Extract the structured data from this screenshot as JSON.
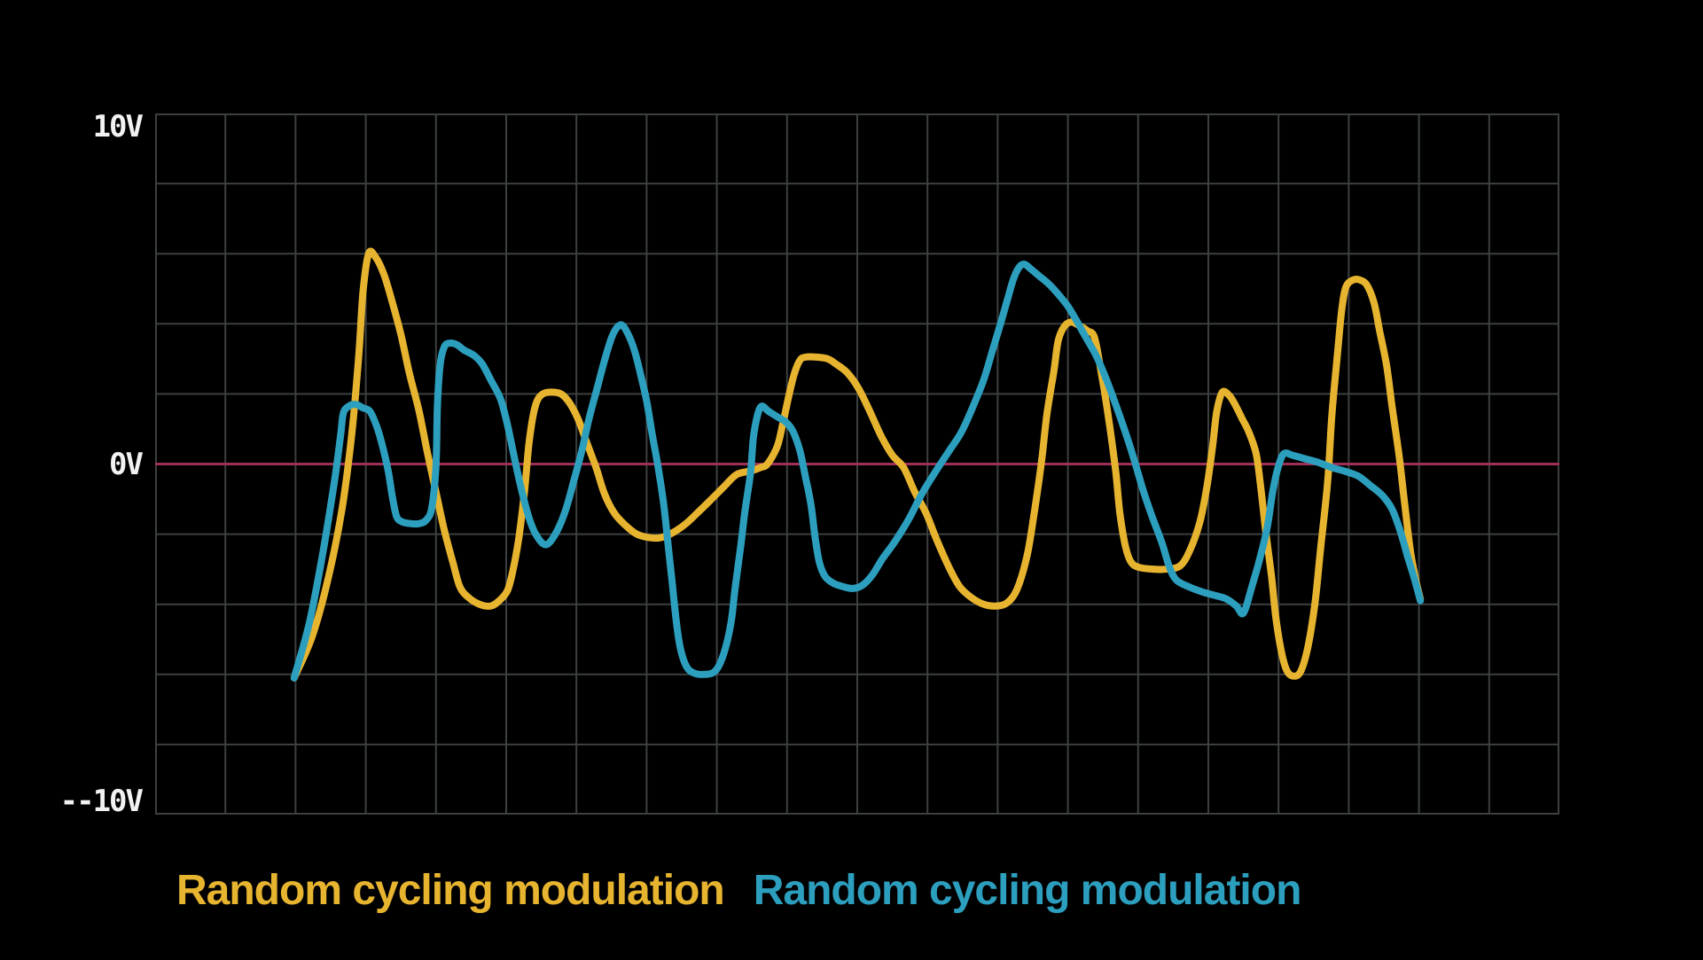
{
  "colors": {
    "background": "#000000",
    "grid": "#3c4040",
    "zero_line": "#9e2f58",
    "axis_text": "#f2f2f2",
    "series_yellow": "#e7b42f",
    "series_teal": "#2d9fbe"
  },
  "chart_data": {
    "type": "line",
    "title": "",
    "style": "oscilloscope",
    "x_axis": {
      "label": "",
      "ticks_visible": false,
      "range_normalized": [
        0,
        1
      ]
    },
    "y_axis": {
      "min": -10,
      "max": 10,
      "unit": "V",
      "ticks": [
        {
          "value": 10,
          "label": "10V"
        },
        {
          "value": 0,
          "label": "0V"
        },
        {
          "value": -10,
          "label": "--10V"
        }
      ]
    },
    "grid": {
      "on": true,
      "cols": 20,
      "rows": 10,
      "color": "#3c4040"
    },
    "zero_line": {
      "value": 0,
      "color": "#9e2f58"
    },
    "legend_position": "bottom-left",
    "series": [
      {
        "name": "Random cycling modulation",
        "color": "#e7b42f",
        "line_width": 8,
        "points": [
          [
            0.099,
            -6.1
          ],
          [
            0.112,
            -4.9
          ],
          [
            0.123,
            -3.3
          ],
          [
            0.133,
            -1.3
          ],
          [
            0.14,
            0.85
          ],
          [
            0.145,
            3.1
          ],
          [
            0.148,
            4.9
          ],
          [
            0.152,
            6.0
          ],
          [
            0.157,
            5.9
          ],
          [
            0.163,
            5.4
          ],
          [
            0.169,
            4.6
          ],
          [
            0.175,
            3.7
          ],
          [
            0.181,
            2.6
          ],
          [
            0.188,
            1.5
          ],
          [
            0.194,
            0.3
          ],
          [
            0.2,
            -0.8
          ],
          [
            0.206,
            -1.9
          ],
          [
            0.212,
            -2.8
          ],
          [
            0.217,
            -3.5
          ],
          [
            0.223,
            -3.8
          ],
          [
            0.231,
            -4.0
          ],
          [
            0.239,
            -4.05
          ],
          [
            0.245,
            -3.9
          ],
          [
            0.251,
            -3.6
          ],
          [
            0.255,
            -3.0
          ],
          [
            0.259,
            -2.1
          ],
          [
            0.263,
            -0.8
          ],
          [
            0.266,
            0.5
          ],
          [
            0.269,
            1.35
          ],
          [
            0.272,
            1.8
          ],
          [
            0.276,
            2.0
          ],
          [
            0.282,
            2.05
          ],
          [
            0.289,
            2.0
          ],
          [
            0.295,
            1.75
          ],
          [
            0.301,
            1.3
          ],
          [
            0.307,
            0.65
          ],
          [
            0.314,
            -0.1
          ],
          [
            0.32,
            -0.85
          ],
          [
            0.327,
            -1.4
          ],
          [
            0.335,
            -1.75
          ],
          [
            0.343,
            -2.0
          ],
          [
            0.352,
            -2.1
          ],
          [
            0.36,
            -2.1
          ],
          [
            0.369,
            -1.95
          ],
          [
            0.378,
            -1.7
          ],
          [
            0.386,
            -1.4
          ],
          [
            0.395,
            -1.05
          ],
          [
            0.405,
            -0.65
          ],
          [
            0.414,
            -0.3
          ],
          [
            0.424,
            -0.2
          ],
          [
            0.431,
            -0.1
          ],
          [
            0.436,
            0.0
          ],
          [
            0.443,
            0.5
          ],
          [
            0.447,
            1.15
          ],
          [
            0.451,
            1.9
          ],
          [
            0.455,
            2.55
          ],
          [
            0.459,
            2.95
          ],
          [
            0.463,
            3.05
          ],
          [
            0.471,
            3.05
          ],
          [
            0.479,
            3.0
          ],
          [
            0.485,
            2.85
          ],
          [
            0.493,
            2.6
          ],
          [
            0.501,
            2.15
          ],
          [
            0.509,
            1.5
          ],
          [
            0.517,
            0.8
          ],
          [
            0.525,
            0.25
          ],
          [
            0.533,
            -0.1
          ],
          [
            0.541,
            -0.8
          ],
          [
            0.549,
            -1.4
          ],
          [
            0.557,
            -2.2
          ],
          [
            0.566,
            -3.0
          ],
          [
            0.573,
            -3.5
          ],
          [
            0.581,
            -3.8
          ],
          [
            0.59,
            -4.0
          ],
          [
            0.599,
            -4.05
          ],
          [
            0.607,
            -3.95
          ],
          [
            0.614,
            -3.55
          ],
          [
            0.621,
            -2.6
          ],
          [
            0.626,
            -1.4
          ],
          [
            0.631,
            0.0
          ],
          [
            0.635,
            1.4
          ],
          [
            0.64,
            2.65
          ],
          [
            0.643,
            3.5
          ],
          [
            0.647,
            3.9
          ],
          [
            0.652,
            4.05
          ],
          [
            0.658,
            3.95
          ],
          [
            0.664,
            3.8
          ],
          [
            0.669,
            3.6
          ],
          [
            0.674,
            2.55
          ],
          [
            0.679,
            1.3
          ],
          [
            0.684,
            -0.2
          ],
          [
            0.687,
            -1.4
          ],
          [
            0.691,
            -2.35
          ],
          [
            0.695,
            -2.8
          ],
          [
            0.701,
            -2.95
          ],
          [
            0.711,
            -3.0
          ],
          [
            0.72,
            -3.0
          ],
          [
            0.73,
            -2.9
          ],
          [
            0.737,
            -2.45
          ],
          [
            0.744,
            -1.65
          ],
          [
            0.749,
            -0.65
          ],
          [
            0.753,
            0.5
          ],
          [
            0.756,
            1.5
          ],
          [
            0.76,
            2.05
          ],
          [
            0.765,
            1.95
          ],
          [
            0.769,
            1.7
          ],
          [
            0.774,
            1.3
          ],
          [
            0.779,
            0.9
          ],
          [
            0.784,
            0.3
          ],
          [
            0.787,
            -0.55
          ],
          [
            0.791,
            -1.95
          ],
          [
            0.795,
            -3.2
          ],
          [
            0.798,
            -4.35
          ],
          [
            0.802,
            -5.35
          ],
          [
            0.806,
            -5.9
          ],
          [
            0.811,
            -6.05
          ],
          [
            0.816,
            -5.9
          ],
          [
            0.821,
            -5.2
          ],
          [
            0.826,
            -3.95
          ],
          [
            0.83,
            -2.4
          ],
          [
            0.835,
            -0.5
          ],
          [
            0.838,
            1.4
          ],
          [
            0.842,
            3.15
          ],
          [
            0.845,
            4.4
          ],
          [
            0.848,
            5.05
          ],
          [
            0.853,
            5.25
          ],
          [
            0.858,
            5.25
          ],
          [
            0.863,
            5.1
          ],
          [
            0.868,
            4.6
          ],
          [
            0.872,
            3.8
          ],
          [
            0.877,
            2.8
          ],
          [
            0.881,
            1.6
          ],
          [
            0.886,
            0.2
          ],
          [
            0.89,
            -1.2
          ],
          [
            0.894,
            -2.5
          ],
          [
            0.898,
            -3.35
          ],
          [
            0.901,
            -3.85
          ]
        ]
      },
      {
        "name": "Random cycling modulation",
        "color": "#2d9fbe",
        "line_width": 8,
        "points": [
          [
            0.099,
            -6.1
          ],
          [
            0.11,
            -4.5
          ],
          [
            0.12,
            -2.4
          ],
          [
            0.128,
            -0.4
          ],
          [
            0.132,
            0.8
          ],
          [
            0.134,
            1.45
          ],
          [
            0.138,
            1.65
          ],
          [
            0.143,
            1.7
          ],
          [
            0.148,
            1.6
          ],
          [
            0.153,
            1.5
          ],
          [
            0.158,
            1.05
          ],
          [
            0.162,
            0.5
          ],
          [
            0.166,
            -0.2
          ],
          [
            0.169,
            -0.95
          ],
          [
            0.172,
            -1.5
          ],
          [
            0.176,
            -1.65
          ],
          [
            0.182,
            -1.7
          ],
          [
            0.188,
            -1.7
          ],
          [
            0.193,
            -1.6
          ],
          [
            0.197,
            -1.25
          ],
          [
            0.2,
            -0.05
          ],
          [
            0.201,
            1.65
          ],
          [
            0.203,
            2.85
          ],
          [
            0.206,
            3.35
          ],
          [
            0.21,
            3.45
          ],
          [
            0.215,
            3.4
          ],
          [
            0.22,
            3.25
          ],
          [
            0.227,
            3.1
          ],
          [
            0.233,
            2.85
          ],
          [
            0.239,
            2.4
          ],
          [
            0.246,
            1.85
          ],
          [
            0.251,
            1.1
          ],
          [
            0.256,
            0.15
          ],
          [
            0.261,
            -0.75
          ],
          [
            0.266,
            -1.5
          ],
          [
            0.271,
            -2.0
          ],
          [
            0.278,
            -2.3
          ],
          [
            0.285,
            -2.0
          ],
          [
            0.292,
            -1.35
          ],
          [
            0.298,
            -0.5
          ],
          [
            0.304,
            0.4
          ],
          [
            0.309,
            1.3
          ],
          [
            0.315,
            2.2
          ],
          [
            0.32,
            2.95
          ],
          [
            0.325,
            3.6
          ],
          [
            0.329,
            3.9
          ],
          [
            0.333,
            3.95
          ],
          [
            0.338,
            3.6
          ],
          [
            0.342,
            3.15
          ],
          [
            0.346,
            2.5
          ],
          [
            0.35,
            1.8
          ],
          [
            0.354,
            0.85
          ],
          [
            0.358,
            -0.05
          ],
          [
            0.362,
            -1.1
          ],
          [
            0.365,
            -2.2
          ],
          [
            0.368,
            -3.3
          ],
          [
            0.371,
            -4.45
          ],
          [
            0.374,
            -5.25
          ],
          [
            0.378,
            -5.75
          ],
          [
            0.383,
            -5.95
          ],
          [
            0.391,
            -6.0
          ],
          [
            0.399,
            -5.9
          ],
          [
            0.405,
            -5.4
          ],
          [
            0.41,
            -4.55
          ],
          [
            0.413,
            -3.55
          ],
          [
            0.417,
            -2.35
          ],
          [
            0.42,
            -1.35
          ],
          [
            0.424,
            -0.25
          ],
          [
            0.426,
            0.75
          ],
          [
            0.429,
            1.4
          ],
          [
            0.432,
            1.65
          ],
          [
            0.437,
            1.5
          ],
          [
            0.443,
            1.35
          ],
          [
            0.449,
            1.2
          ],
          [
            0.454,
            0.95
          ],
          [
            0.459,
            0.4
          ],
          [
            0.463,
            -0.35
          ],
          [
            0.467,
            -1.15
          ],
          [
            0.47,
            -2.1
          ],
          [
            0.473,
            -2.8
          ],
          [
            0.477,
            -3.2
          ],
          [
            0.483,
            -3.4
          ],
          [
            0.49,
            -3.5
          ],
          [
            0.497,
            -3.55
          ],
          [
            0.504,
            -3.45
          ],
          [
            0.511,
            -3.15
          ],
          [
            0.518,
            -2.7
          ],
          [
            0.527,
            -2.2
          ],
          [
            0.537,
            -1.55
          ],
          [
            0.546,
            -0.85
          ],
          [
            0.556,
            -0.2
          ],
          [
            0.565,
            0.35
          ],
          [
            0.574,
            0.9
          ],
          [
            0.582,
            1.6
          ],
          [
            0.59,
            2.4
          ],
          [
            0.596,
            3.2
          ],
          [
            0.602,
            4.0
          ],
          [
            0.607,
            4.7
          ],
          [
            0.611,
            5.25
          ],
          [
            0.615,
            5.6
          ],
          [
            0.619,
            5.7
          ],
          [
            0.624,
            5.55
          ],
          [
            0.63,
            5.35
          ],
          [
            0.636,
            5.15
          ],
          [
            0.643,
            4.85
          ],
          [
            0.65,
            4.5
          ],
          [
            0.656,
            4.1
          ],
          [
            0.663,
            3.6
          ],
          [
            0.67,
            3.1
          ],
          [
            0.677,
            2.45
          ],
          [
            0.684,
            1.7
          ],
          [
            0.691,
            0.9
          ],
          [
            0.697,
            0.15
          ],
          [
            0.704,
            -0.8
          ],
          [
            0.71,
            -1.5
          ],
          [
            0.717,
            -2.25
          ],
          [
            0.722,
            -2.9
          ],
          [
            0.727,
            -3.3
          ],
          [
            0.736,
            -3.5
          ],
          [
            0.746,
            -3.65
          ],
          [
            0.755,
            -3.75
          ],
          [
            0.763,
            -3.85
          ],
          [
            0.77,
            -4.05
          ],
          [
            0.775,
            -4.25
          ],
          [
            0.781,
            -3.5
          ],
          [
            0.787,
            -2.65
          ],
          [
            0.792,
            -1.8
          ],
          [
            0.796,
            -0.75
          ],
          [
            0.8,
            -0.05
          ],
          [
            0.804,
            0.3
          ],
          [
            0.81,
            0.25
          ],
          [
            0.819,
            0.15
          ],
          [
            0.828,
            0.05
          ],
          [
            0.838,
            -0.1
          ],
          [
            0.847,
            -0.2
          ],
          [
            0.857,
            -0.35
          ],
          [
            0.865,
            -0.6
          ],
          [
            0.874,
            -0.9
          ],
          [
            0.881,
            -1.3
          ],
          [
            0.887,
            -1.95
          ],
          [
            0.892,
            -2.65
          ],
          [
            0.897,
            -3.3
          ],
          [
            0.901,
            -3.9
          ]
        ]
      }
    ]
  }
}
